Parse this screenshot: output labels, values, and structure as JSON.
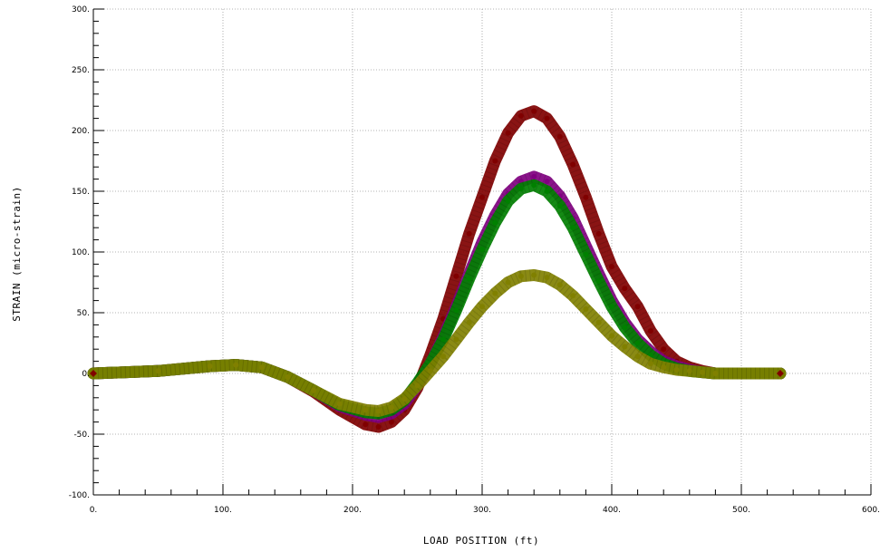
{
  "chart_data": {
    "type": "scatter",
    "title": "",
    "xlabel": "LOAD POSITION (ft)",
    "ylabel": "STRAIN (micro-strain)",
    "xlim": [
      0,
      600
    ],
    "ylim": [
      -100,
      300
    ],
    "grid": true,
    "legend": "none",
    "x_ticks": [
      "0.",
      "100.",
      "200.",
      "300.",
      "400.",
      "500.",
      "600."
    ],
    "y_ticks": [
      "-100.",
      "-50.",
      "0.",
      "50.",
      "100.",
      "150.",
      "200.",
      "250.",
      "300."
    ],
    "series": [
      {
        "color": "#800000",
        "points": [
          [
            0,
            0
          ],
          [
            50,
            2
          ],
          [
            90,
            6
          ],
          [
            110,
            7
          ],
          [
            130,
            5
          ],
          [
            150,
            -3
          ],
          [
            170,
            -15
          ],
          [
            190,
            -30
          ],
          [
            210,
            -42
          ],
          [
            220,
            -44
          ],
          [
            230,
            -40
          ],
          [
            240,
            -30
          ],
          [
            250,
            -12
          ],
          [
            260,
            15
          ],
          [
            270,
            45
          ],
          [
            280,
            80
          ],
          [
            290,
            115
          ],
          [
            300,
            145
          ],
          [
            310,
            175
          ],
          [
            320,
            198
          ],
          [
            330,
            212
          ],
          [
            340,
            216
          ],
          [
            350,
            210
          ],
          [
            360,
            195
          ],
          [
            370,
            172
          ],
          [
            380,
            145
          ],
          [
            390,
            115
          ],
          [
            400,
            88
          ],
          [
            410,
            70
          ],
          [
            420,
            55
          ],
          [
            430,
            35
          ],
          [
            440,
            20
          ],
          [
            450,
            10
          ],
          [
            460,
            5
          ],
          [
            470,
            2
          ],
          [
            480,
            0
          ],
          [
            530,
            0
          ]
        ]
      },
      {
        "color": "#800080",
        "points": [
          [
            0,
            0
          ],
          [
            50,
            2
          ],
          [
            90,
            6
          ],
          [
            110,
            7
          ],
          [
            130,
            5
          ],
          [
            150,
            -3
          ],
          [
            170,
            -14
          ],
          [
            190,
            -27
          ],
          [
            210,
            -34
          ],
          [
            220,
            -36
          ],
          [
            230,
            -33
          ],
          [
            240,
            -25
          ],
          [
            250,
            -10
          ],
          [
            260,
            8
          ],
          [
            270,
            30
          ],
          [
            280,
            55
          ],
          [
            290,
            82
          ],
          [
            300,
            108
          ],
          [
            310,
            130
          ],
          [
            320,
            148
          ],
          [
            330,
            158
          ],
          [
            340,
            162
          ],
          [
            350,
            158
          ],
          [
            360,
            146
          ],
          [
            370,
            128
          ],
          [
            380,
            105
          ],
          [
            390,
            82
          ],
          [
            400,
            60
          ],
          [
            410,
            42
          ],
          [
            420,
            28
          ],
          [
            430,
            18
          ],
          [
            440,
            10
          ],
          [
            450,
            6
          ],
          [
            460,
            3
          ],
          [
            470,
            1
          ],
          [
            480,
            0
          ],
          [
            530,
            0
          ]
        ]
      },
      {
        "color": "#008000",
        "points": [
          [
            0,
            0
          ],
          [
            50,
            2
          ],
          [
            90,
            6
          ],
          [
            110,
            7
          ],
          [
            130,
            5
          ],
          [
            150,
            -3
          ],
          [
            170,
            -14
          ],
          [
            190,
            -26
          ],
          [
            210,
            -32
          ],
          [
            220,
            -33
          ],
          [
            230,
            -30
          ],
          [
            240,
            -22
          ],
          [
            250,
            -8
          ],
          [
            260,
            8
          ],
          [
            270,
            28
          ],
          [
            280,
            52
          ],
          [
            290,
            78
          ],
          [
            300,
            102
          ],
          [
            310,
            124
          ],
          [
            320,
            142
          ],
          [
            330,
            152
          ],
          [
            340,
            155
          ],
          [
            350,
            150
          ],
          [
            360,
            138
          ],
          [
            370,
            120
          ],
          [
            380,
            98
          ],
          [
            390,
            76
          ],
          [
            400,
            55
          ],
          [
            410,
            38
          ],
          [
            420,
            25
          ],
          [
            430,
            15
          ],
          [
            440,
            8
          ],
          [
            450,
            4
          ],
          [
            460,
            2
          ],
          [
            470,
            1
          ],
          [
            480,
            0
          ],
          [
            530,
            0
          ]
        ]
      },
      {
        "color": "#808000",
        "points": [
          [
            0,
            0
          ],
          [
            50,
            2
          ],
          [
            90,
            6
          ],
          [
            110,
            7
          ],
          [
            130,
            5
          ],
          [
            150,
            -3
          ],
          [
            170,
            -14
          ],
          [
            190,
            -25
          ],
          [
            210,
            -30
          ],
          [
            220,
            -31
          ],
          [
            230,
            -28
          ],
          [
            240,
            -21
          ],
          [
            250,
            -10
          ],
          [
            260,
            2
          ],
          [
            270,
            14
          ],
          [
            280,
            28
          ],
          [
            290,
            42
          ],
          [
            300,
            55
          ],
          [
            310,
            66
          ],
          [
            320,
            75
          ],
          [
            330,
            80
          ],
          [
            340,
            81
          ],
          [
            350,
            79
          ],
          [
            360,
            73
          ],
          [
            370,
            64
          ],
          [
            380,
            53
          ],
          [
            390,
            42
          ],
          [
            400,
            31
          ],
          [
            410,
            22
          ],
          [
            420,
            14
          ],
          [
            430,
            8
          ],
          [
            440,
            5
          ],
          [
            450,
            3
          ],
          [
            460,
            2
          ],
          [
            470,
            1
          ],
          [
            480,
            0
          ],
          [
            530,
            0
          ]
        ]
      }
    ]
  }
}
